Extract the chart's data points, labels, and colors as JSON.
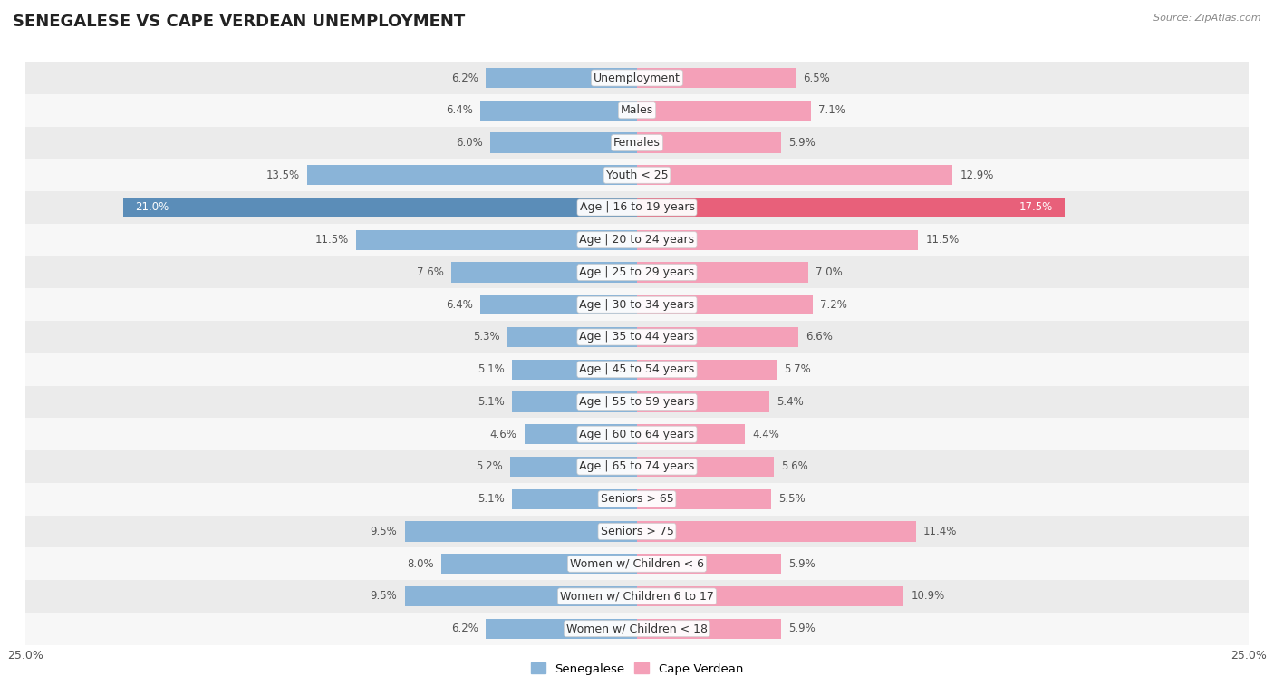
{
  "title": "SENEGALESE VS CAPE VERDEAN UNEMPLOYMENT",
  "source": "Source: ZipAtlas.com",
  "categories": [
    "Unemployment",
    "Males",
    "Females",
    "Youth < 25",
    "Age | 16 to 19 years",
    "Age | 20 to 24 years",
    "Age | 25 to 29 years",
    "Age | 30 to 34 years",
    "Age | 35 to 44 years",
    "Age | 45 to 54 years",
    "Age | 55 to 59 years",
    "Age | 60 to 64 years",
    "Age | 65 to 74 years",
    "Seniors > 65",
    "Seniors > 75",
    "Women w/ Children < 6",
    "Women w/ Children 6 to 17",
    "Women w/ Children < 18"
  ],
  "senegalese": [
    6.2,
    6.4,
    6.0,
    13.5,
    21.0,
    11.5,
    7.6,
    6.4,
    5.3,
    5.1,
    5.1,
    4.6,
    5.2,
    5.1,
    9.5,
    8.0,
    9.5,
    6.2
  ],
  "cape_verdean": [
    6.5,
    7.1,
    5.9,
    12.9,
    17.5,
    11.5,
    7.0,
    7.2,
    6.6,
    5.7,
    5.4,
    4.4,
    5.6,
    5.5,
    11.4,
    5.9,
    10.9,
    5.9
  ],
  "senegalese_color": "#8ab4d8",
  "cape_verdean_color": "#f4a0b8",
  "highlight_row": "Age | 16 to 19 years",
  "senegalese_highlight_color": "#5b8db8",
  "cape_verdean_highlight_color": "#e8607a",
  "max_val": 25.0,
  "bar_height": 0.62,
  "row_colors": [
    "#ebebeb",
    "#f7f7f7"
  ],
  "title_fontsize": 13,
  "label_fontsize": 9,
  "value_fontsize": 8.5,
  "legend_label_1": "Senegalese",
  "legend_label_2": "Cape Verdean"
}
